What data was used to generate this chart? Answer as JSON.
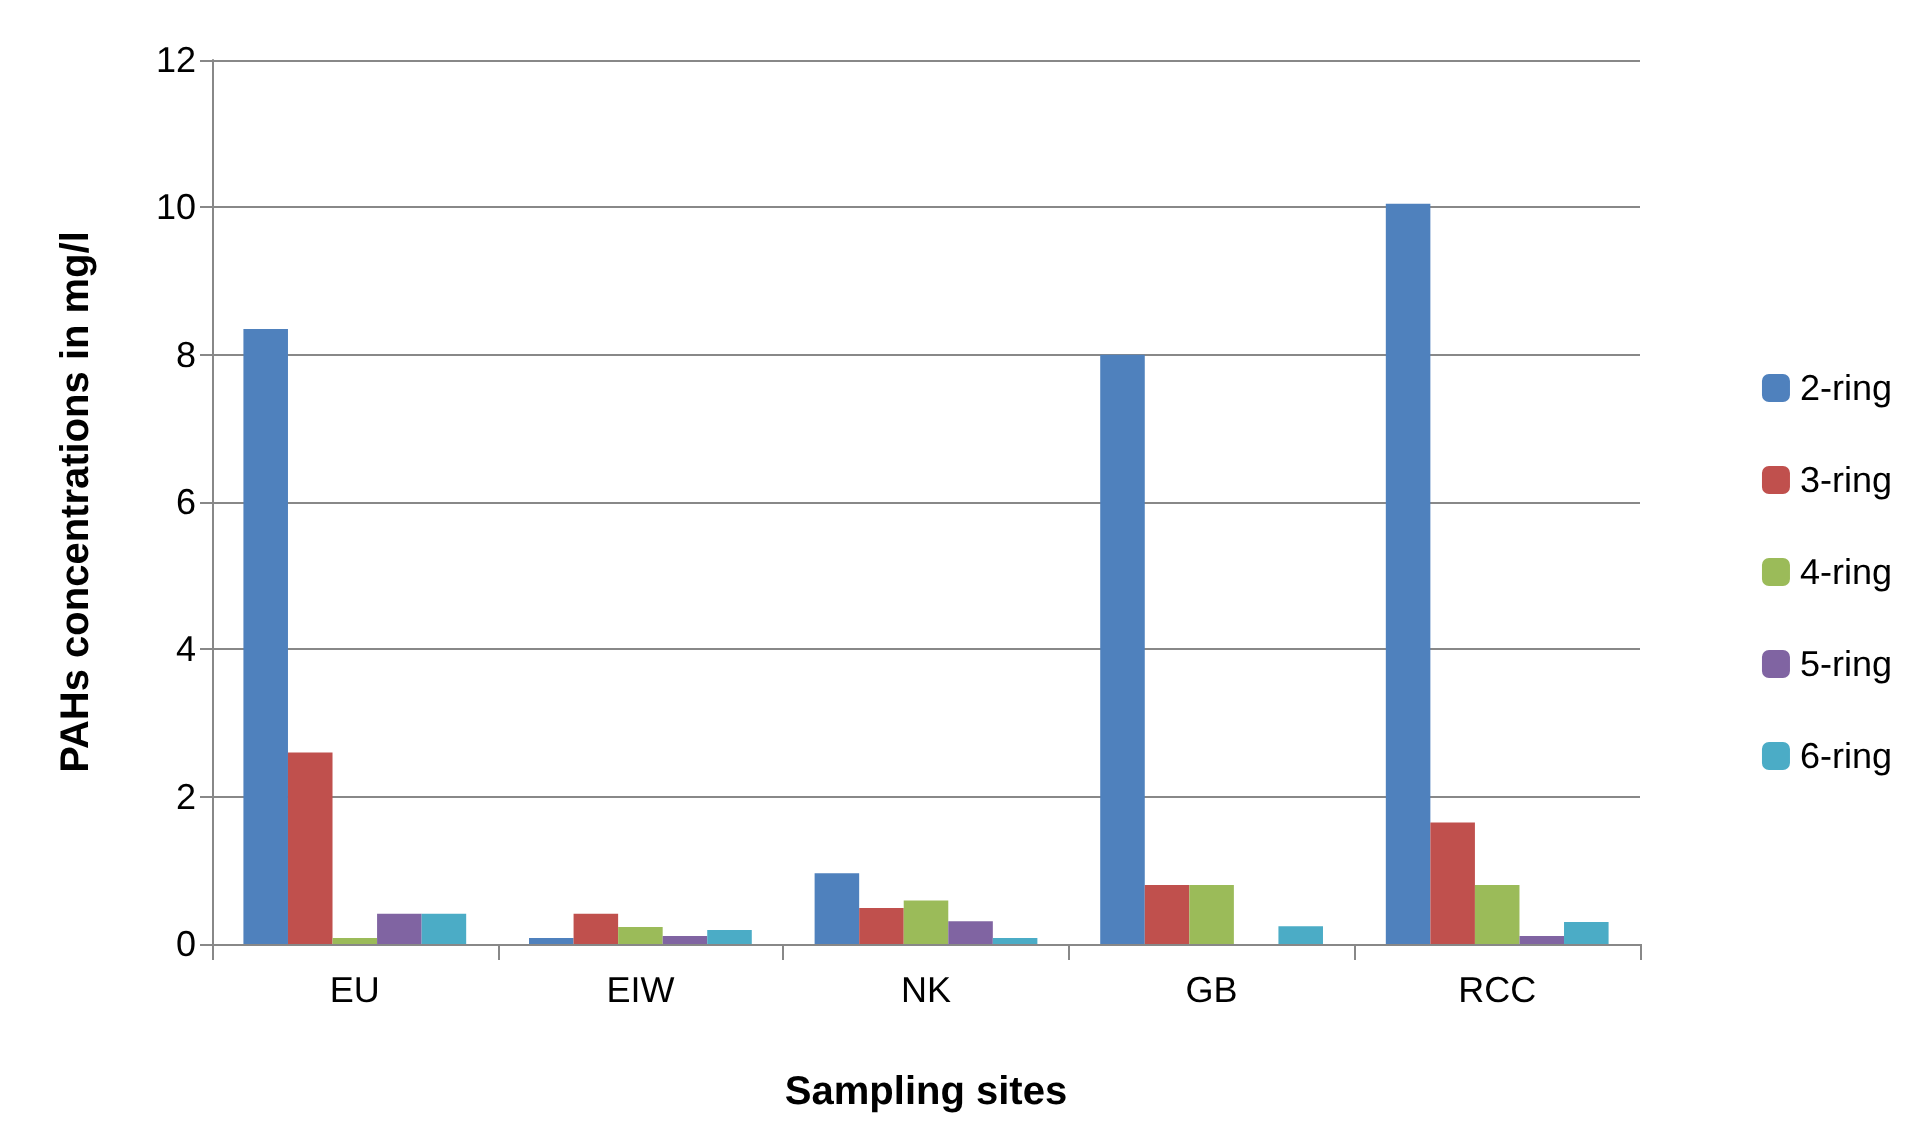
{
  "chart_data": {
    "type": "bar",
    "xlabel": "Sampling sites",
    "ylabel": "PAHs concentrations in mg/l",
    "categories": [
      "EU",
      "EIW",
      "NK",
      "GB",
      "RCC"
    ],
    "series": [
      {
        "name": "2-ring",
        "color": "#4f81bd",
        "values": [
          8.35,
          0.08,
          0.96,
          8.0,
          10.05
        ]
      },
      {
        "name": "3-ring",
        "color": "#c0504d",
        "values": [
          2.6,
          0.41,
          0.49,
          0.8,
          1.65
        ]
      },
      {
        "name": "4-ring",
        "color": "#9bbb59",
        "values": [
          0.08,
          0.23,
          0.59,
          0.8,
          0.8
        ]
      },
      {
        "name": "5-ring",
        "color": "#8064a2",
        "values": [
          0.41,
          0.11,
          0.31,
          0,
          0.11
        ]
      },
      {
        "name": "6-ring",
        "color": "#4bacc6",
        "values": [
          0.41,
          0.19,
          0.08,
          0.24,
          0.3
        ]
      }
    ],
    "ylim": [
      0,
      12
    ],
    "yticks": [
      0,
      2,
      4,
      6,
      8,
      10,
      12
    ],
    "grid": "y",
    "legend": "right"
  }
}
